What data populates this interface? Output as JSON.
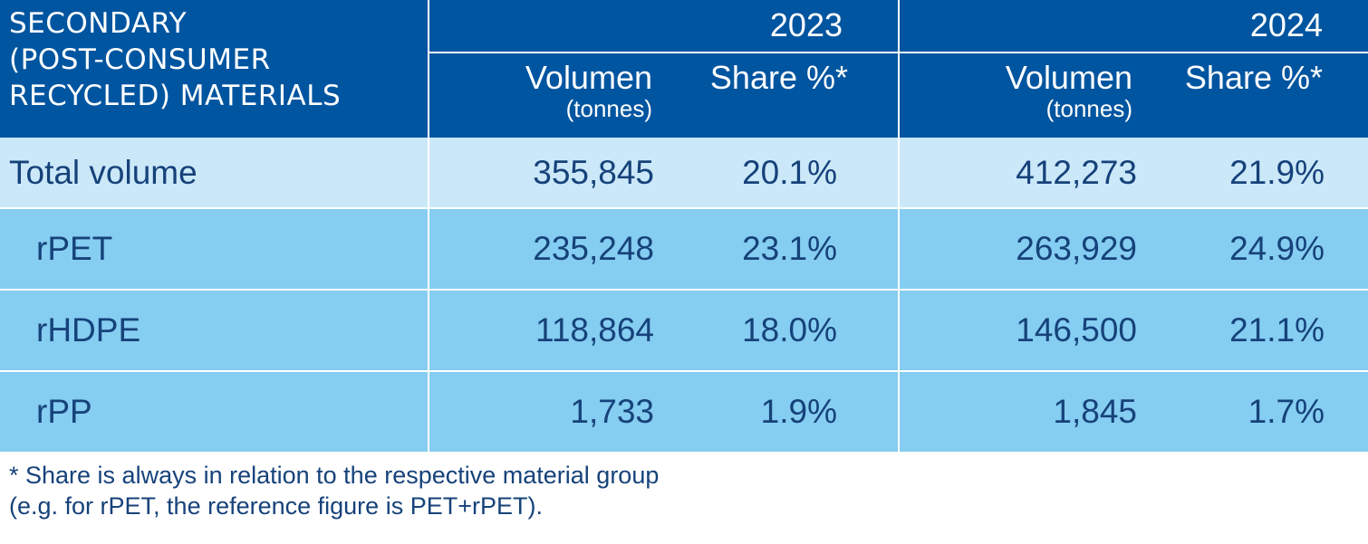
{
  "header": {
    "title_lines": [
      "SECONDARY",
      "(POST-CONSUMER",
      "RECYCLED) MATERIALS"
    ],
    "years": [
      "2023",
      "2024"
    ],
    "volume_label": "Volumen",
    "volume_unit": "(tonnes)",
    "share_label": "Share %*"
  },
  "rows": [
    {
      "label": "Total volume",
      "v2023": "355,845",
      "s2023": "20.1%",
      "v2024": "412,273",
      "s2024": "21.9%"
    },
    {
      "label": "rPET",
      "v2023": "235,248",
      "s2023": "23.1%",
      "v2024": "263,929",
      "s2024": "24.9%"
    },
    {
      "label": "rHDPE",
      "v2023": "118,864",
      "s2023": "18.0%",
      "v2024": "146,500",
      "s2024": "21.1%"
    },
    {
      "label": "rPP",
      "v2023": "1,733",
      "s2023": "1.9%",
      "v2024": "1,845",
      "s2024": "1.7%"
    }
  ],
  "footnote": {
    "lines": [
      "* Share is always in relation to the respective material group",
      "(e.g. for rPET, the reference figure is PET+rPET)."
    ]
  },
  "colors": {
    "header_bg": "#0055a0",
    "total_row_bg": "#cbe8f9",
    "row_bg": "#85cdf1",
    "text": "#16427a"
  }
}
